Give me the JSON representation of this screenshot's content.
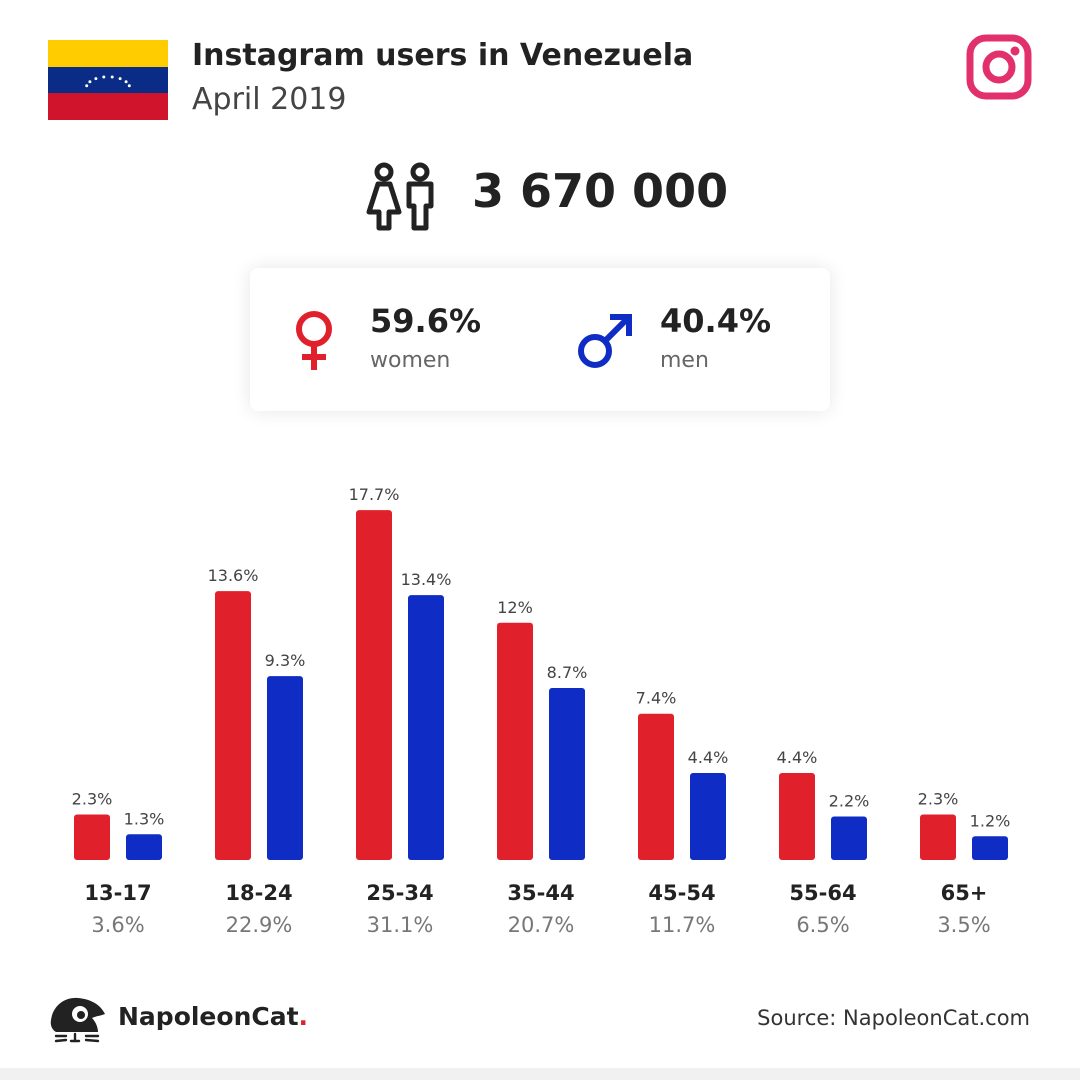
{
  "header": {
    "title": "Instagram users in Venezuela",
    "subtitle": "April 2019",
    "flag_colors": [
      "#FFCC00",
      "#0A2C86",
      "#CF142B"
    ],
    "flag_icon": "venezuela-flag-icon",
    "platform_icon": "instagram-icon",
    "platform_color": "#E1306C"
  },
  "total": {
    "icon": "users-icon",
    "value": "3 670 000"
  },
  "gender": {
    "women": {
      "pct": "59.6%",
      "label": "women",
      "icon": "female-symbol-icon",
      "color": "#E0202A"
    },
    "men": {
      "pct": "40.4%",
      "label": "men",
      "icon": "male-symbol-icon",
      "color": "#0F2DC4"
    }
  },
  "chart_data": {
    "type": "bar",
    "categories": [
      "13-17",
      "18-24",
      "25-34",
      "35-44",
      "45-54",
      "55-64",
      "65+"
    ],
    "category_totals": [
      "3.6%",
      "22.9%",
      "31.1%",
      "20.7%",
      "11.7%",
      "6.5%",
      "3.5%"
    ],
    "series": [
      {
        "values": [
          2.3,
          13.6,
          17.7,
          12,
          7.4,
          4.4,
          2.3
        ],
        "labels": [
          "2.3%",
          "13.6%",
          "17.7%",
          "12%",
          "7.4%",
          "4.4%",
          "2.3%"
        ],
        "color": "#E0202A"
      },
      {
        "values": [
          1.3,
          9.3,
          13.4,
          8.7,
          4.4,
          2.2,
          1.2
        ],
        "labels": [
          "1.3%",
          "9.3%",
          "13.4%",
          "8.7%",
          "4.4%",
          "2.2%",
          "1.2%"
        ],
        "color": "#0F2DC4"
      }
    ],
    "grid": false
  },
  "footer": {
    "brand": "NapoleonCat",
    "brand_dot": ".",
    "brand_icon": "napoleoncat-logo-icon",
    "source": "Source: NapoleonCat.com"
  }
}
